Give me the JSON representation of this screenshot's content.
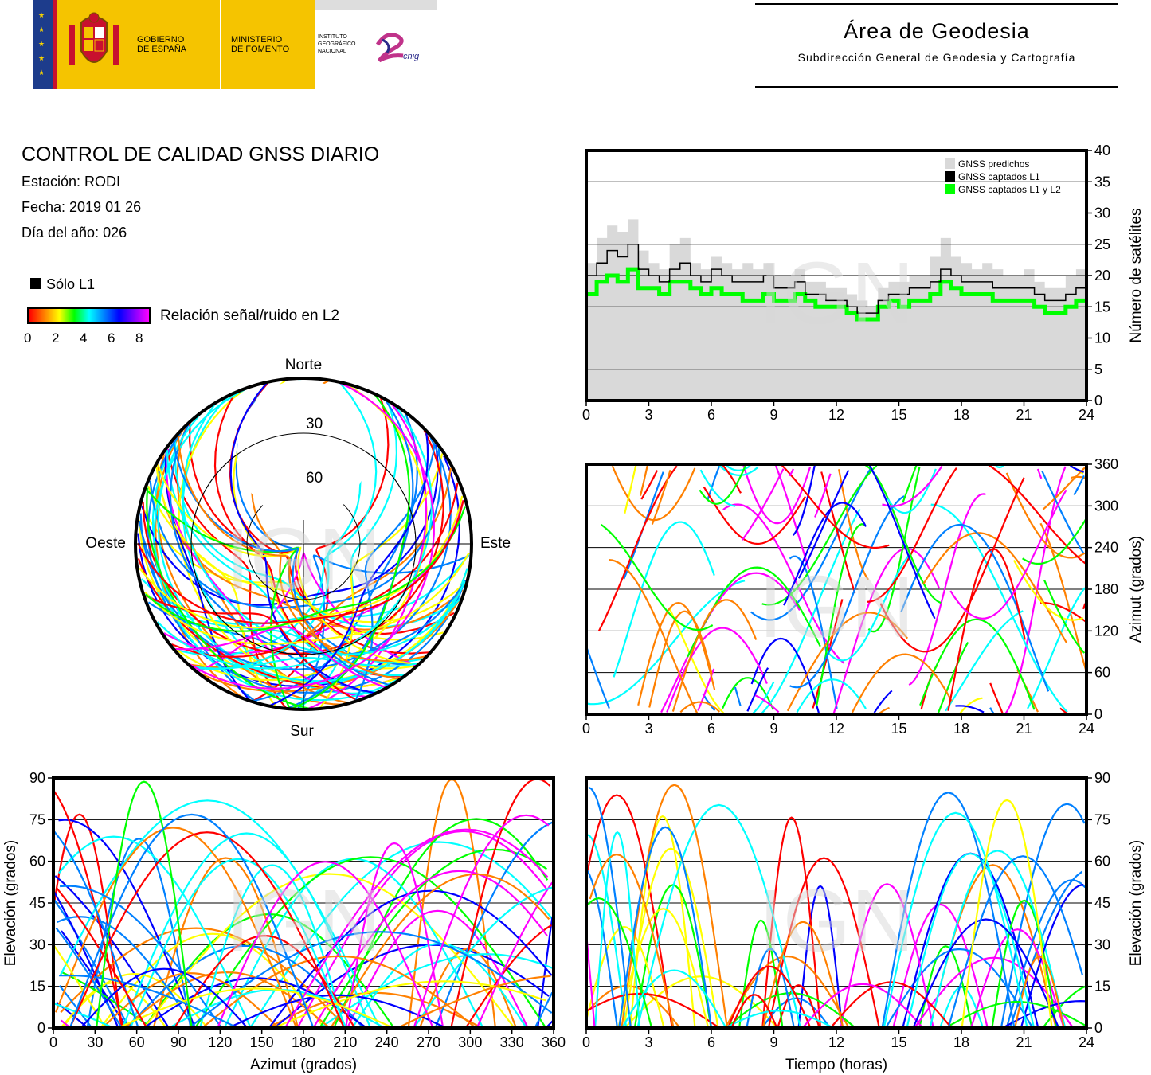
{
  "header": {
    "gov_line1": "GOBIERNO",
    "gov_line2": "DE ESPAÑA",
    "min_line1": "MINISTERIO",
    "min_line2": "DE FOMENTO",
    "ign_line1": "INSTITUTO",
    "ign_line2": "GEOGRÁFICO",
    "ign_line3": "NACIONAL",
    "cnig": "cnig",
    "area_title": "Área de Geodesia",
    "area_subtitle": "Subdirección General de Geodesia y Cartografía"
  },
  "report": {
    "title": "CONTROL DE CALIDAD GNSS DIARIO",
    "station": "Estación: RODI",
    "date": "Fecha: 2019 01 26",
    "doy": "Día del año: 026",
    "legend_l1": "Sólo L1",
    "legend_snr": "Relación señal/ruido en L2",
    "snr_ticks": [
      "0",
      "2",
      "4",
      "6",
      "8"
    ],
    "watermark": "IGN"
  },
  "colors": {
    "predicted": "#d9d9d9",
    "l1": "#000000",
    "l1l2": "#00ff00",
    "snr_scale": [
      "#ff0000",
      "#ff8000",
      "#ffff00",
      "#00ff00",
      "#00ffff",
      "#0080ff",
      "#0000ff",
      "#ff00ff"
    ]
  },
  "chart_data": [
    {
      "type": "area",
      "id": "sat-count",
      "ylabel": "Número de satélites",
      "xlim": [
        0,
        24
      ],
      "ylim": [
        0,
        40
      ],
      "xticks": [
        "0",
        "3",
        "6",
        "9",
        "12",
        "15",
        "18",
        "21",
        "24"
      ],
      "yticks": [
        "0",
        "5",
        "10",
        "15",
        "20",
        "25",
        "30",
        "35",
        "40"
      ],
      "legend": [
        "GNSS predichos",
        "GNSS captados L1",
        "GNSS captados L1 y L2"
      ],
      "legend_position": "top-right",
      "x": [
        0,
        0.5,
        1,
        1.5,
        2,
        2.5,
        3,
        3.5,
        4,
        4.5,
        5,
        5.5,
        6,
        6.5,
        7,
        7.5,
        8,
        8.5,
        9,
        9.5,
        10,
        10.5,
        11,
        11.5,
        12,
        12.5,
        13,
        13.5,
        14,
        14.5,
        15,
        15.5,
        16,
        16.5,
        17,
        17.5,
        18,
        18.5,
        19,
        19.5,
        20,
        20.5,
        21,
        21.5,
        22,
        22.5,
        23,
        23.5,
        24
      ],
      "series": [
        {
          "name": "GNSS predichos",
          "values": [
            22,
            26,
            28,
            27,
            29,
            24,
            22,
            21,
            25,
            26,
            22,
            21,
            23,
            22,
            21,
            22,
            21,
            22,
            20,
            20,
            21,
            19,
            19,
            18,
            18,
            17,
            16,
            15,
            18,
            19,
            19,
            20,
            20,
            23,
            26,
            23,
            22,
            21,
            22,
            21,
            20,
            20,
            21,
            19,
            18,
            18,
            20,
            21,
            21
          ]
        },
        {
          "name": "GNSS captados L1",
          "values": [
            20,
            22,
            24,
            23,
            25,
            21,
            20,
            19,
            21,
            22,
            20,
            19,
            21,
            20,
            19,
            19,
            19,
            20,
            18,
            18,
            19,
            17,
            17,
            16,
            16,
            15,
            14,
            14,
            16,
            17,
            17,
            18,
            18,
            19,
            21,
            20,
            19,
            19,
            19,
            18,
            18,
            18,
            18,
            17,
            16,
            16,
            17,
            18,
            19
          ]
        },
        {
          "name": "GNSS captados L1 y L2",
          "values": [
            17,
            19,
            20,
            19,
            21,
            18,
            18,
            17,
            19,
            19,
            18,
            17,
            18,
            17,
            17,
            16,
            16,
            17,
            16,
            16,
            17,
            16,
            15,
            15,
            15,
            14,
            13,
            13,
            15,
            16,
            15,
            16,
            16,
            17,
            19,
            18,
            17,
            17,
            17,
            16,
            16,
            16,
            16,
            15,
            14,
            14,
            15,
            16,
            16
          ]
        }
      ]
    },
    {
      "type": "scatter",
      "id": "azimuth-time",
      "ylabel": "Azimut (grados)",
      "xlim": [
        0,
        24
      ],
      "ylim": [
        0,
        360
      ],
      "xticks": [
        "0",
        "3",
        "6",
        "9",
        "12",
        "15",
        "18",
        "21",
        "24"
      ],
      "yticks": [
        "0",
        "60",
        "120",
        "180",
        "240",
        "300",
        "360"
      ]
    },
    {
      "type": "scatter",
      "id": "elevation-azimuth",
      "xlabel": "Azimut (grados)",
      "ylabel": "Elevación (grados)",
      "xlim": [
        0,
        360
      ],
      "ylim": [
        0,
        90
      ],
      "xticks": [
        "0",
        "30",
        "60",
        "90",
        "120",
        "150",
        "180",
        "210",
        "240",
        "270",
        "300",
        "330",
        "360"
      ],
      "yticks": [
        "0",
        "15",
        "30",
        "45",
        "60",
        "75",
        "90"
      ]
    },
    {
      "type": "scatter",
      "id": "elevation-time",
      "xlabel": "Tiempo (horas)",
      "ylabel": "Elevación (grados)",
      "xlim": [
        0,
        24
      ],
      "ylim": [
        0,
        90
      ],
      "xticks": [
        "0",
        "3",
        "6",
        "9",
        "12",
        "15",
        "18",
        "21",
        "24"
      ],
      "yticks": [
        "0",
        "15",
        "30",
        "45",
        "60",
        "75",
        "90"
      ]
    },
    {
      "type": "scatter",
      "id": "skyplot",
      "labels": {
        "north": "Norte",
        "south": "Sur",
        "east": "Este",
        "west": "Oeste"
      },
      "rings": [
        "30",
        "60"
      ]
    }
  ]
}
